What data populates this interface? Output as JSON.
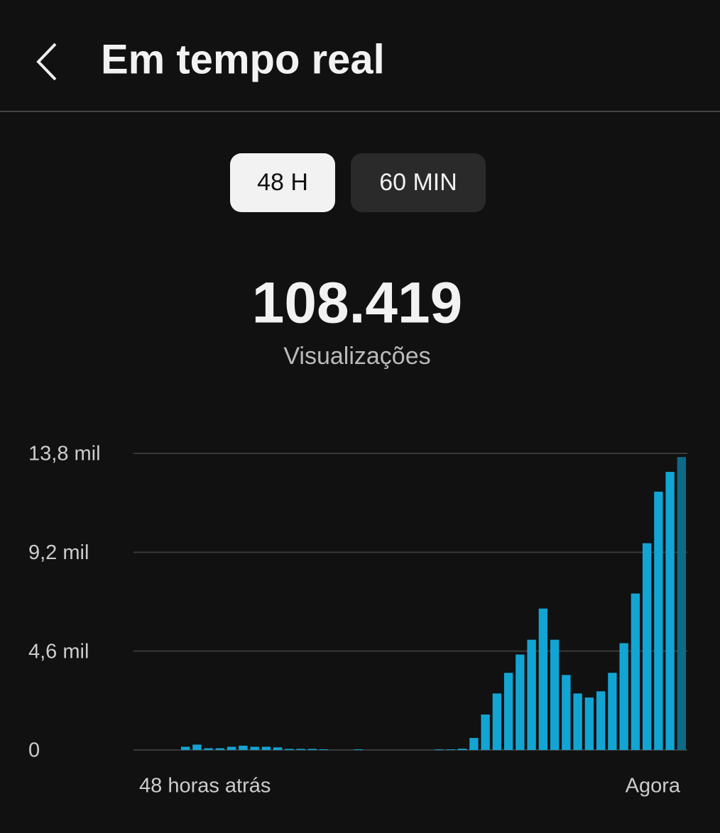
{
  "header": {
    "title": "Em tempo real"
  },
  "tabs": [
    "48 H",
    "60 MIN"
  ],
  "summary": {
    "value": "108.419",
    "label": "Visualizações"
  },
  "chart_data": {
    "type": "bar",
    "categories": [
      null,
      null,
      null,
      null,
      null,
      null,
      null,
      null,
      null,
      null,
      null,
      null,
      null,
      null,
      null,
      null,
      null,
      null,
      null,
      null,
      null,
      null,
      null,
      null,
      null,
      null,
      null,
      null,
      null,
      null,
      null,
      null,
      null,
      null,
      null,
      null,
      null,
      null,
      null,
      null,
      null,
      null,
      null,
      null,
      null,
      null,
      null,
      null
    ],
    "values": [
      0,
      0,
      0,
      0,
      150,
      250,
      80,
      80,
      150,
      200,
      150,
      150,
      120,
      50,
      50,
      50,
      30,
      0,
      0,
      30,
      0,
      0,
      0,
      0,
      0,
      0,
      30,
      30,
      60,
      560,
      1650,
      2630,
      3590,
      4440,
      5130,
      6580,
      5130,
      3490,
      2630,
      2440,
      2730,
      3590,
      4970,
      7280,
      9620,
      12020,
      12940,
      13630
    ],
    "color": "#12a5d3",
    "highlight_color": "#0e6a86",
    "ylim": [
      0,
      13800
    ],
    "yticks": [
      0,
      {
        "value": 4600,
        "label": "4,6 mil"
      },
      {
        "value": 9200,
        "label": "9,2 mil"
      },
      {
        "value": 13800,
        "label": "13,8 mil"
      }
    ],
    "grid": true,
    "x_start_label": "48 horas atrás",
    "x_end_label": "Agora"
  }
}
